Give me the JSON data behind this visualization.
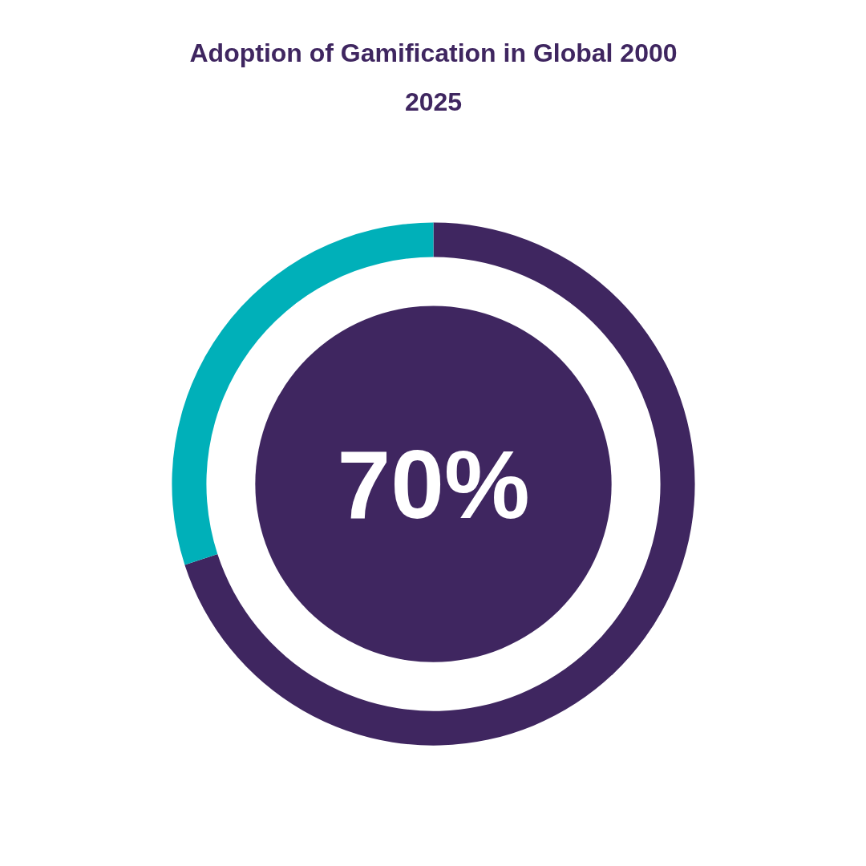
{
  "chart_data": {
    "type": "donut",
    "title": "Adoption of Gamification in Global 2000 2025",
    "categories": [
      null,
      null
    ],
    "values": [
      70,
      30
    ],
    "colors": [
      "#3f2660",
      "#00b0b9"
    ],
    "annotations": [
      "70%"
    ]
  }
}
